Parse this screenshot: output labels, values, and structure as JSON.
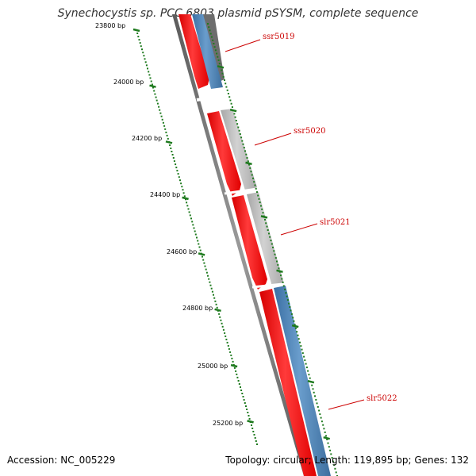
{
  "title": "Synechocystis sp. PCC 6803 plasmid pSYSM, complete sequence",
  "footer": {
    "accession": "Accession: NC_005229",
    "summary": "Topology: circular; Length: 119,895 bp; Genes: 132"
  },
  "ruler": {
    "unit": "bp",
    "labels": [
      {
        "text": "23800 bp",
        "value": 23800
      },
      {
        "text": "24000 bp",
        "value": 24000
      },
      {
        "text": "24200 bp",
        "value": 24200
      },
      {
        "text": "24400 bp",
        "value": 24400
      },
      {
        "text": "24600 bp",
        "value": 24600
      },
      {
        "text": "24800 bp",
        "value": 24800
      },
      {
        "text": "25000 bp",
        "value": 25000
      },
      {
        "text": "25200 bp",
        "value": 25200
      }
    ],
    "color": "#1e7a1e"
  },
  "genes": [
    {
      "label": "ssr5019",
      "feature_color": "#4a7eb0",
      "label_color": "#cc0000"
    },
    {
      "label": "ssr5020",
      "feature_color": "#b8b8b8",
      "label_color": "#cc0000"
    },
    {
      "label": "slr5021",
      "feature_color": "#b8b8b8",
      "label_color": "#cc0000"
    },
    {
      "label": "slr5022",
      "feature_color": "#4a7eb0",
      "label_color": "#cc0000"
    }
  ],
  "colors": {
    "cds": "#ee1111",
    "backbone": "#777777"
  }
}
